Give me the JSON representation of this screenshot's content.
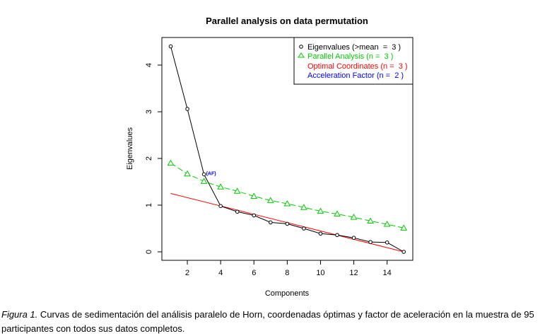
{
  "chart_data": {
    "type": "line",
    "title": "Parallel analysis on data permutation",
    "xlabel": "Components",
    "ylabel": "Eigenvalues",
    "xlim": [
      1,
      15
    ],
    "ylim": [
      0,
      4.4
    ],
    "xticks": [
      2,
      4,
      6,
      8,
      10,
      12,
      14
    ],
    "yticks": [
      0,
      1,
      2,
      3,
      4
    ],
    "x": [
      1,
      2,
      3,
      4,
      5,
      6,
      7,
      8,
      9,
      10,
      11,
      12,
      13,
      14,
      15
    ],
    "series": [
      {
        "name": "Eigenvalues (>mean  =  3 )",
        "color": "#000000",
        "marker": "circle",
        "values": [
          4.4,
          3.06,
          1.66,
          0.98,
          0.86,
          0.78,
          0.63,
          0.6,
          0.5,
          0.39,
          0.36,
          0.3,
          0.21,
          0.2,
          0.0
        ]
      },
      {
        "name": "Parallel Analysis (n =  3 )",
        "color": "#00cc00",
        "marker": "triangle",
        "dashed": true,
        "values": [
          1.9,
          1.67,
          1.51,
          1.39,
          1.3,
          1.19,
          1.1,
          1.03,
          0.95,
          0.87,
          0.81,
          0.74,
          0.66,
          0.59,
          0.51
        ]
      },
      {
        "name": "Optimal Coordinates (n =  3 )",
        "color": "#ff0000",
        "marker": "none",
        "line_from": [
          1,
          1.25
        ],
        "line_to": [
          15,
          0.0
        ]
      },
      {
        "name": "Acceleration Factor (n =  2 )",
        "color": "#0000ff",
        "marker": "none"
      }
    ],
    "annotation": {
      "text": "(AF)",
      "x": 3,
      "y": 1.66
    },
    "legend_position": "top-right"
  },
  "caption": {
    "label": "Figura 1.",
    "text": " Curvas de sedimentación del análisis paralelo de Horn, coordenadas óptimas y factor de aceleración en la muestra de 95 participantes con todos sus datos completos."
  }
}
